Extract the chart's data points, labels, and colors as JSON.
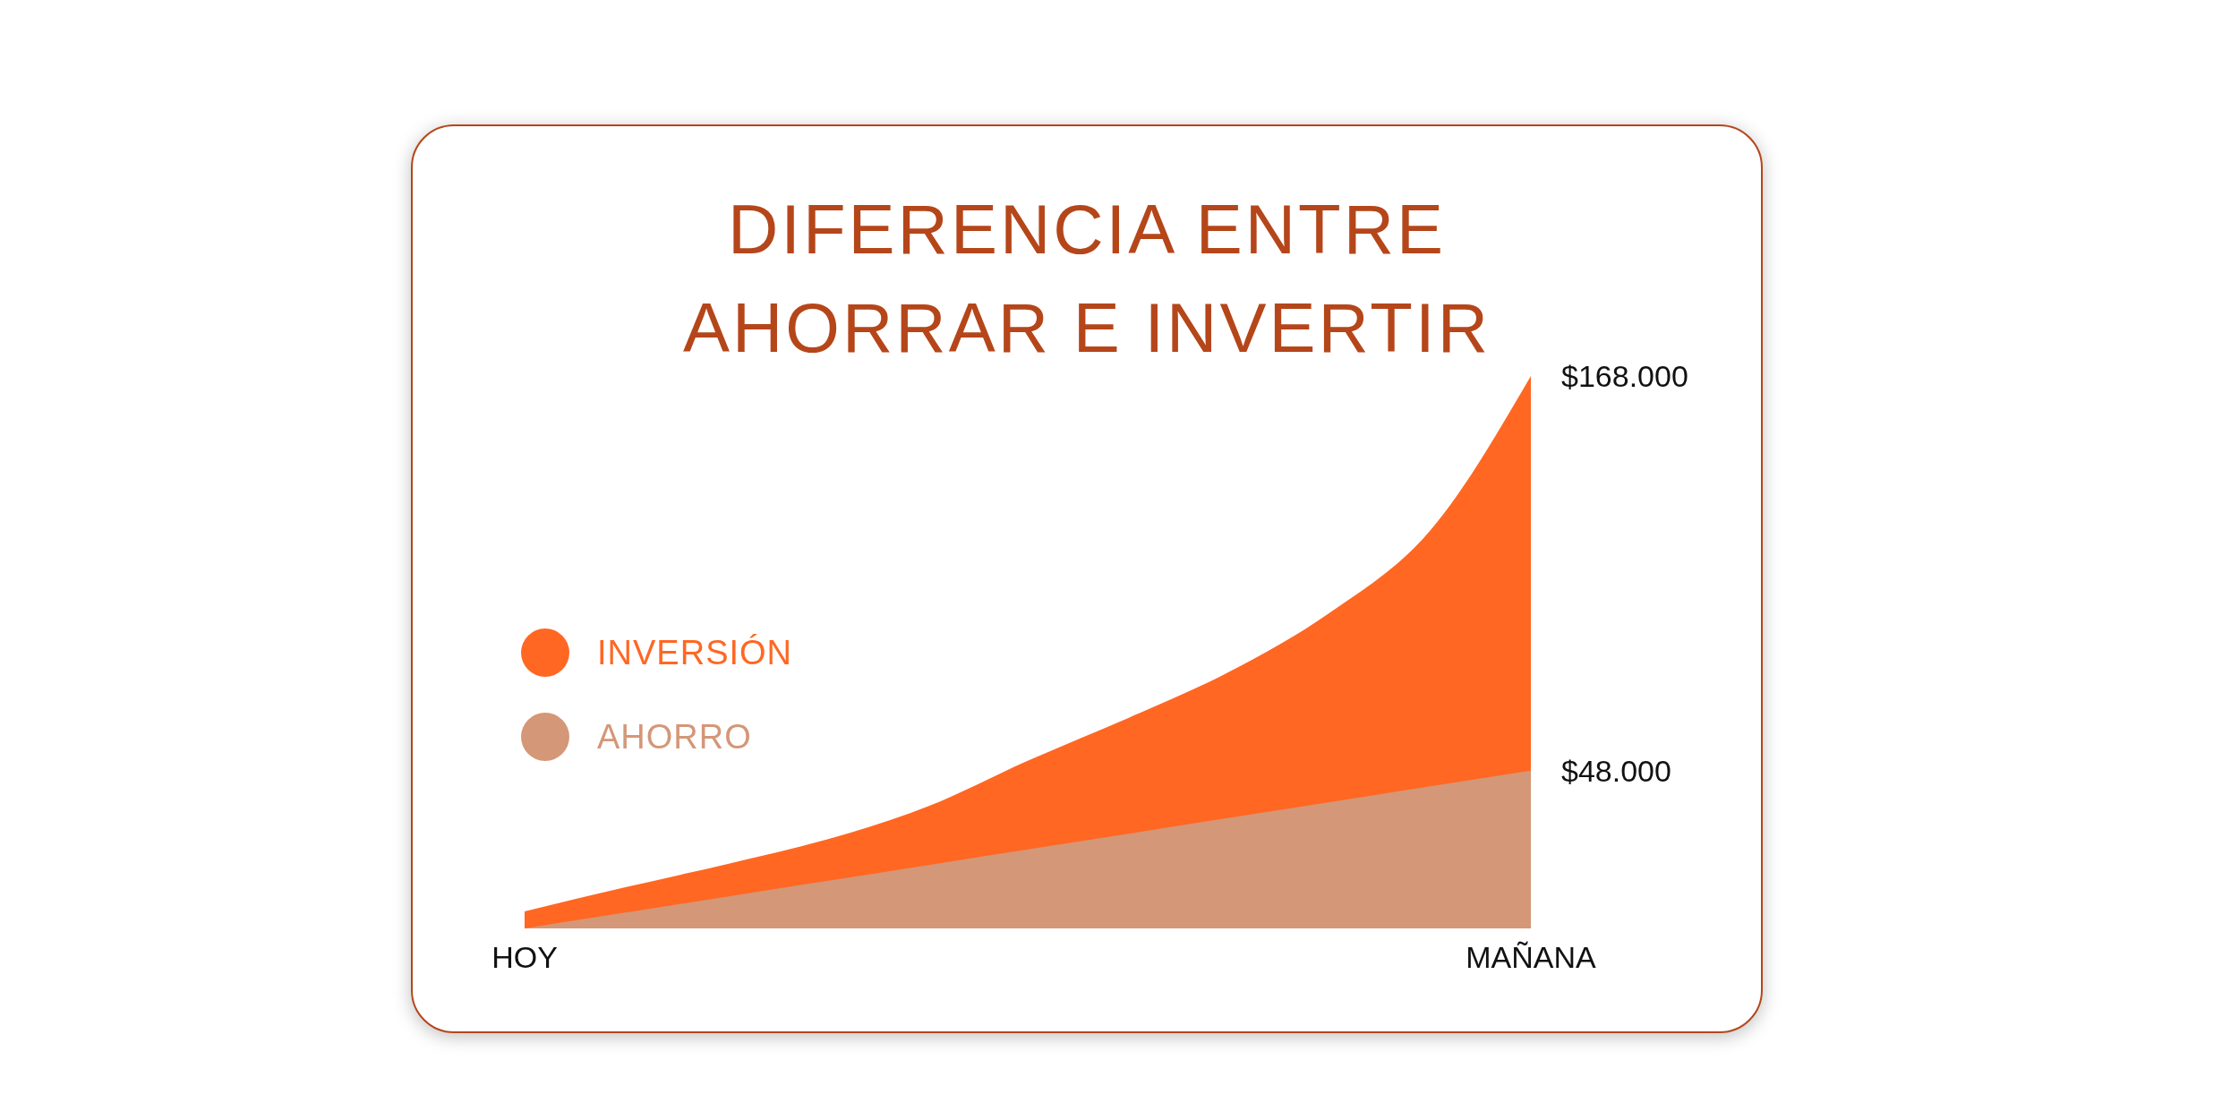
{
  "chart_data": {
    "type": "area",
    "title": "DIFERENCIA ENTRE AHORRAR E INVERTIR",
    "categories": [
      "HOY",
      null,
      null,
      null,
      null,
      null,
      null,
      null,
      null,
      null,
      "MAÑANA"
    ],
    "legend": "left",
    "ylim": [
      0,
      168000
    ],
    "yticks": [
      {
        "value": 48000,
        "label": "$48.000"
      },
      {
        "value": 168000,
        "label": "$168.000"
      }
    ],
    "series": [
      {
        "name": "INVERSIÓN",
        "color": "#ff6723",
        "values": [
          5200,
          12500,
          19500,
          27000,
          37000,
          51000,
          64000,
          78000,
          96000,
          121000,
          168000
        ]
      },
      {
        "name": "AHORRO",
        "color": "#d49777",
        "values": [
          0,
          4800,
          9600,
          14400,
          19200,
          24000,
          28800,
          33600,
          38400,
          43200,
          48000
        ]
      }
    ]
  }
}
